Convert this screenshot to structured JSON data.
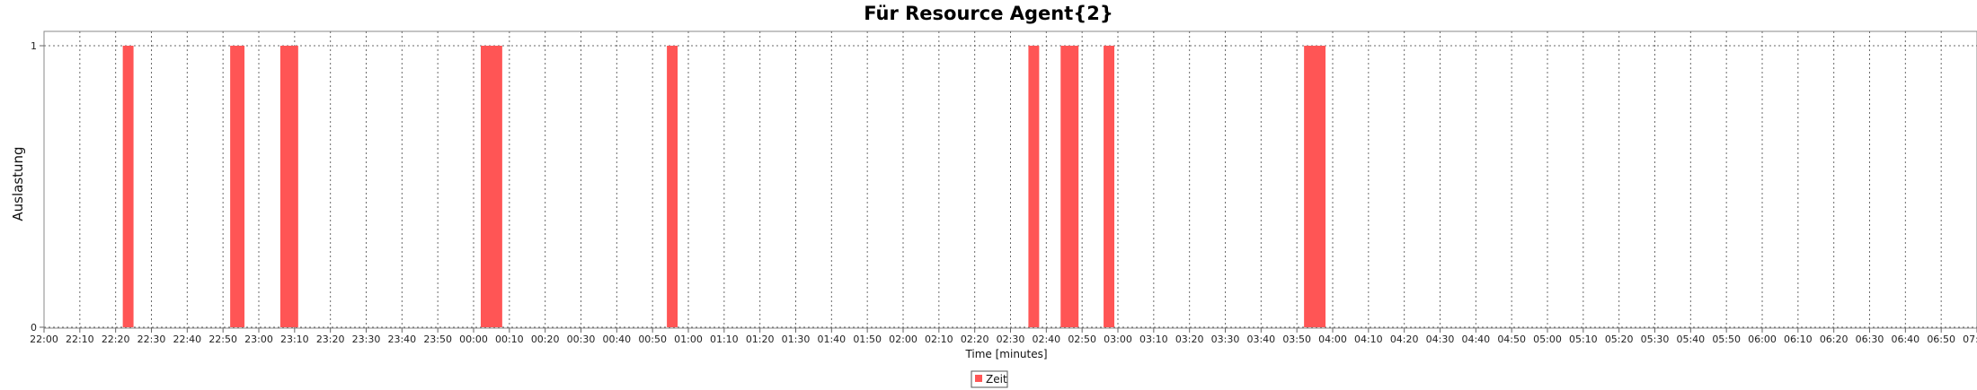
{
  "chart_data": {
    "type": "bar",
    "title": "Für Resource Agent{2}",
    "xlabel": "Time [minutes]",
    "ylabel": "Auslastung",
    "ylim": [
      0,
      1
    ],
    "y_ticks": [
      "0",
      "1"
    ],
    "x_range": [
      "22:00",
      "07:00"
    ],
    "x_ticks": [
      "22:00",
      "22:10",
      "22:20",
      "22:30",
      "22:40",
      "22:50",
      "23:00",
      "23:10",
      "23:20",
      "23:30",
      "23:40",
      "23:50",
      "00:00",
      "00:10",
      "00:20",
      "00:30",
      "00:40",
      "00:50",
      "01:00",
      "01:10",
      "01:20",
      "01:30",
      "01:40",
      "01:50",
      "02:00",
      "02:10",
      "02:20",
      "02:30",
      "02:40",
      "02:50",
      "03:00",
      "03:10",
      "03:20",
      "03:30",
      "03:40",
      "03:50",
      "04:00",
      "04:10",
      "04:20",
      "04:30",
      "04:40",
      "04:50",
      "05:00",
      "05:10",
      "05:20",
      "05:30",
      "05:40",
      "05:50",
      "06:00",
      "06:10",
      "06:20",
      "06:30",
      "06:40",
      "06:50",
      "07:00"
    ],
    "grid": true,
    "legend_position": "bottom-center",
    "series": [
      {
        "name": "Zeit",
        "color": "#ff5555",
        "intervals": [
          {
            "start": "22:22",
            "end": "22:25",
            "value": 1
          },
          {
            "start": "22:52",
            "end": "22:56",
            "value": 1
          },
          {
            "start": "23:06",
            "end": "23:11",
            "value": 1
          },
          {
            "start": "00:02",
            "end": "00:08",
            "value": 1
          },
          {
            "start": "00:54",
            "end": "00:57",
            "value": 1
          },
          {
            "start": "02:35",
            "end": "02:38",
            "value": 1
          },
          {
            "start": "02:44",
            "end": "02:49",
            "value": 1
          },
          {
            "start": "02:56",
            "end": "02:59",
            "value": 1
          },
          {
            "start": "03:52",
            "end": "03:58",
            "value": 1
          }
        ]
      }
    ]
  }
}
